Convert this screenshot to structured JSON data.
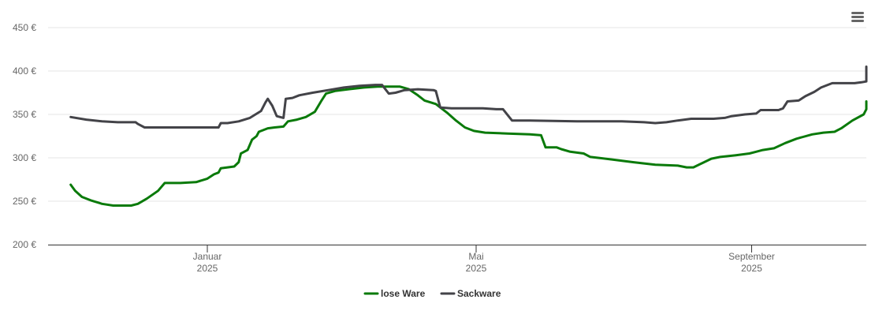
{
  "chart_data": {
    "type": "line",
    "title": "",
    "xlabel": "",
    "ylabel": "",
    "ylim": [
      200,
      450
    ],
    "y_ticks": [
      "200 €",
      "250 €",
      "300 €",
      "350 €",
      "400 €",
      "450 €"
    ],
    "y_tick_values": [
      200,
      250,
      300,
      350,
      400,
      450
    ],
    "x_range": [
      "2024-11-01",
      "2025-11-30"
    ],
    "x_ticks": [
      {
        "date": "2025-01-01",
        "month": "Januar",
        "year": "2025"
      },
      {
        "date": "2025-05-01",
        "month": "Mai",
        "year": "2025"
      },
      {
        "date": "2025-09-01",
        "month": "September",
        "year": "2025"
      }
    ],
    "grid": true,
    "legend": "bottom-center",
    "series": [
      {
        "name": "lose Ware",
        "color": "#0a7a0a",
        "points": [
          [
            "2024-11-01",
            269
          ],
          [
            "2024-11-03",
            262
          ],
          [
            "2024-11-06",
            255
          ],
          [
            "2024-11-10",
            251
          ],
          [
            "2024-11-15",
            247
          ],
          [
            "2024-11-20",
            245
          ],
          [
            "2024-11-28",
            245
          ],
          [
            "2024-12-01",
            247
          ],
          [
            "2024-12-05",
            253
          ],
          [
            "2024-12-10",
            262
          ],
          [
            "2024-12-13",
            271
          ],
          [
            "2024-12-20",
            271
          ],
          [
            "2024-12-27",
            272
          ],
          [
            "2025-01-01",
            276
          ],
          [
            "2025-01-04",
            281
          ],
          [
            "2025-01-06",
            283
          ],
          [
            "2025-01-07",
            288
          ],
          [
            "2025-01-10",
            289
          ],
          [
            "2025-01-13",
            290
          ],
          [
            "2025-01-15",
            295
          ],
          [
            "2025-01-16",
            305
          ],
          [
            "2025-01-19",
            309
          ],
          [
            "2025-01-21",
            321
          ],
          [
            "2025-01-23",
            325
          ],
          [
            "2025-01-24",
            330
          ],
          [
            "2025-01-28",
            334
          ],
          [
            "2025-01-31",
            335
          ],
          [
            "2025-02-04",
            336
          ],
          [
            "2025-02-06",
            342
          ],
          [
            "2025-02-10",
            344
          ],
          [
            "2025-02-14",
            347
          ],
          [
            "2025-02-18",
            353
          ],
          [
            "2025-02-21",
            366
          ],
          [
            "2025-02-23",
            374
          ],
          [
            "2025-02-27",
            377
          ],
          [
            "2025-03-05",
            379
          ],
          [
            "2025-03-12",
            381
          ],
          [
            "2025-03-18",
            382
          ],
          [
            "2025-03-28",
            382
          ],
          [
            "2025-04-01",
            379
          ],
          [
            "2025-04-05",
            372
          ],
          [
            "2025-04-08",
            366
          ],
          [
            "2025-04-13",
            362
          ],
          [
            "2025-04-18",
            352
          ],
          [
            "2025-04-22",
            343
          ],
          [
            "2025-04-26",
            335
          ],
          [
            "2025-04-30",
            331
          ],
          [
            "2025-05-05",
            329
          ],
          [
            "2025-05-15",
            328
          ],
          [
            "2025-05-25",
            327
          ],
          [
            "2025-05-30",
            326
          ],
          [
            "2025-06-01",
            312
          ],
          [
            "2025-06-06",
            312
          ],
          [
            "2025-06-08",
            310
          ],
          [
            "2025-06-12",
            307
          ],
          [
            "2025-06-18",
            305
          ],
          [
            "2025-06-21",
            301
          ],
          [
            "2025-07-01",
            298
          ],
          [
            "2025-07-10",
            295
          ],
          [
            "2025-07-20",
            292
          ],
          [
            "2025-07-30",
            291
          ],
          [
            "2025-08-03",
            289
          ],
          [
            "2025-08-06",
            289
          ],
          [
            "2025-08-10",
            294
          ],
          [
            "2025-08-14",
            299
          ],
          [
            "2025-08-18",
            301
          ],
          [
            "2025-08-25",
            303
          ],
          [
            "2025-08-31",
            305
          ],
          [
            "2025-09-03",
            307
          ],
          [
            "2025-09-06",
            309
          ],
          [
            "2025-09-11",
            311
          ],
          [
            "2025-09-16",
            317
          ],
          [
            "2025-09-21",
            322
          ],
          [
            "2025-09-28",
            327
          ],
          [
            "2025-10-03",
            329
          ],
          [
            "2025-10-08",
            330
          ],
          [
            "2025-10-11",
            334
          ],
          [
            "2025-10-16",
            343
          ],
          [
            "2025-10-21",
            350
          ],
          [
            "2025-10-26",
            356
          ],
          [
            "2025-10-31",
            358
          ],
          [
            "2025-11-07",
            358
          ],
          [
            "2025-11-12",
            361
          ],
          [
            "2025-11-18",
            362
          ],
          [
            "2025-11-22",
            362
          ],
          [
            "2025-11-23",
            365
          ]
        ]
      },
      {
        "name": "Sackware",
        "color": "#434348",
        "points": [
          [
            "2024-11-01",
            347
          ],
          [
            "2024-11-08",
            344
          ],
          [
            "2024-11-15",
            342
          ],
          [
            "2024-11-22",
            341
          ],
          [
            "2024-11-30",
            341
          ],
          [
            "2024-12-01",
            339
          ],
          [
            "2024-12-04",
            335
          ],
          [
            "2024-12-15",
            335
          ],
          [
            "2025-01-01",
            335
          ],
          [
            "2025-01-06",
            335
          ],
          [
            "2025-01-07",
            340
          ],
          [
            "2025-01-10",
            340
          ],
          [
            "2025-01-15",
            342
          ],
          [
            "2025-01-20",
            346
          ],
          [
            "2025-01-25",
            354
          ],
          [
            "2025-01-27",
            364
          ],
          [
            "2025-01-28",
            368
          ],
          [
            "2025-01-30",
            360
          ],
          [
            "2025-02-01",
            348
          ],
          [
            "2025-02-04",
            346
          ],
          [
            "2025-02-05",
            368
          ],
          [
            "2025-02-08",
            369
          ],
          [
            "2025-02-11",
            372
          ],
          [
            "2025-02-17",
            375
          ],
          [
            "2025-02-24",
            378
          ],
          [
            "2025-03-03",
            381
          ],
          [
            "2025-03-10",
            383
          ],
          [
            "2025-03-17",
            384
          ],
          [
            "2025-03-20",
            384
          ],
          [
            "2025-03-23",
            374
          ],
          [
            "2025-03-26",
            375
          ],
          [
            "2025-03-30",
            378
          ],
          [
            "2025-04-05",
            379
          ],
          [
            "2025-04-12",
            378
          ],
          [
            "2025-04-13",
            377
          ],
          [
            "2025-04-15",
            358
          ],
          [
            "2025-04-20",
            357
          ],
          [
            "2025-04-27",
            357
          ],
          [
            "2025-05-04",
            357
          ],
          [
            "2025-05-10",
            356
          ],
          [
            "2025-05-13",
            356
          ],
          [
            "2025-05-17",
            343
          ],
          [
            "2025-05-25",
            343
          ],
          [
            "2025-06-15",
            342
          ],
          [
            "2025-07-05",
            342
          ],
          [
            "2025-07-15",
            341
          ],
          [
            "2025-07-20",
            340
          ],
          [
            "2025-07-25",
            341
          ],
          [
            "2025-07-30",
            343
          ],
          [
            "2025-08-05",
            345
          ],
          [
            "2025-08-15",
            345
          ],
          [
            "2025-08-20",
            346
          ],
          [
            "2025-08-23",
            348
          ],
          [
            "2025-08-29",
            350
          ],
          [
            "2025-09-03",
            351
          ],
          [
            "2025-09-05",
            355
          ],
          [
            "2025-09-13",
            355
          ],
          [
            "2025-09-15",
            357
          ],
          [
            "2025-09-17",
            365
          ],
          [
            "2025-09-22",
            366
          ],
          [
            "2025-09-25",
            371
          ],
          [
            "2025-09-29",
            376
          ],
          [
            "2025-10-02",
            381
          ],
          [
            "2025-10-07",
            386
          ],
          [
            "2025-10-12",
            386
          ],
          [
            "2025-10-17",
            386
          ],
          [
            "2025-10-20",
            387
          ],
          [
            "2025-10-25",
            388
          ],
          [
            "2025-10-27",
            392
          ],
          [
            "2025-10-29",
            400
          ],
          [
            "2025-11-03",
            402
          ],
          [
            "2025-11-08",
            403
          ],
          [
            "2025-11-13",
            404
          ],
          [
            "2025-11-18",
            405
          ],
          [
            "2025-11-21",
            404
          ],
          [
            "2025-11-23",
            403
          ]
        ]
      }
    ]
  },
  "toolbar": {
    "menu_icon": "hamburger-menu-icon"
  }
}
